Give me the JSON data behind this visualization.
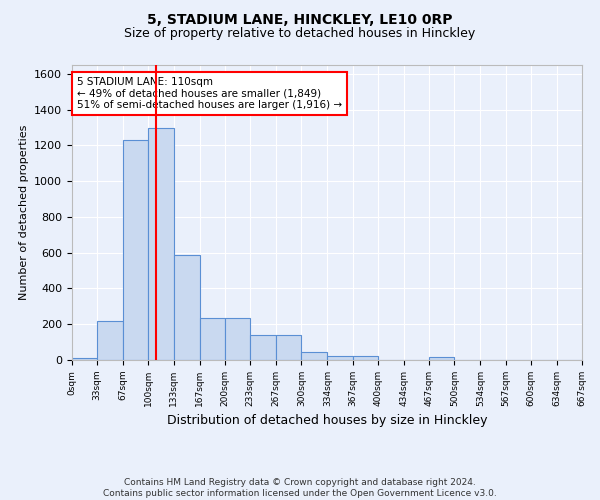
{
  "title1": "5, STADIUM LANE, HINCKLEY, LE10 0RP",
  "title2": "Size of property relative to detached houses in Hinckley",
  "xlabel": "Distribution of detached houses by size in Hinckley",
  "ylabel": "Number of detached properties",
  "footnote": "Contains HM Land Registry data © Crown copyright and database right 2024.\nContains public sector information licensed under the Open Government Licence v3.0.",
  "bin_edges": [
    0,
    33,
    67,
    100,
    133,
    167,
    200,
    233,
    267,
    300,
    334,
    367,
    400,
    434,
    467,
    500,
    534,
    567,
    600,
    634,
    667
  ],
  "bar_heights": [
    10,
    220,
    1230,
    1300,
    590,
    235,
    235,
    140,
    140,
    45,
    25,
    20,
    0,
    0,
    15,
    0,
    0,
    0,
    0,
    0
  ],
  "bar_color": "#c9d9f0",
  "bar_edge_color": "#5a8fd4",
  "property_size": 110,
  "annotation_text": "5 STADIUM LANE: 110sqm\n← 49% of detached houses are smaller (1,849)\n51% of semi-detached houses are larger (1,916) →",
  "annotation_box_color": "white",
  "annotation_box_edge": "red",
  "vline_color": "red",
  "ylim": [
    0,
    1650
  ],
  "yticks": [
    0,
    200,
    400,
    600,
    800,
    1000,
    1200,
    1400,
    1600
  ],
  "tick_labels": [
    "0sqm",
    "33sqm",
    "67sqm",
    "100sqm",
    "133sqm",
    "167sqm",
    "200sqm",
    "233sqm",
    "267sqm",
    "300sqm",
    "334sqm",
    "367sqm",
    "400sqm",
    "434sqm",
    "467sqm",
    "500sqm",
    "534sqm",
    "567sqm",
    "600sqm",
    "634sqm",
    "667sqm"
  ],
  "background_color": "#eaf0fb",
  "grid_color": "white",
  "title1_fontsize": 10,
  "title2_fontsize": 9,
  "annotation_fontsize": 7.5,
  "ylabel_fontsize": 8,
  "xlabel_fontsize": 9,
  "footnote_fontsize": 6.5
}
